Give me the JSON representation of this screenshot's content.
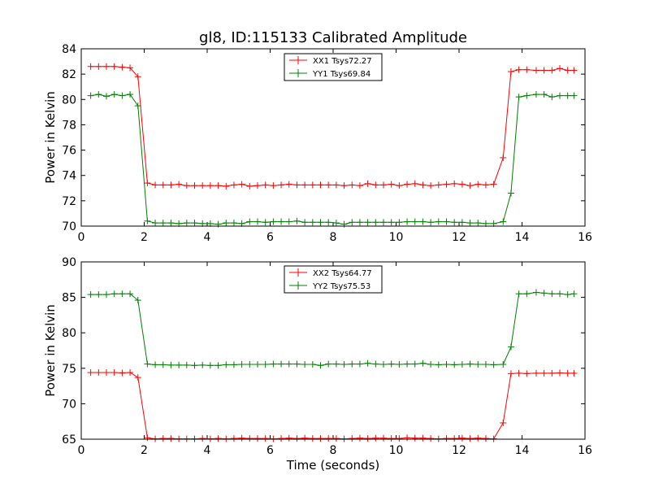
{
  "chart_data": [
    {
      "type": "line",
      "title": "gl8, ID:115133 Calibrated Amplitude",
      "xlabel": "",
      "ylabel": "Power in Kelvin",
      "xlim": [
        0,
        16
      ],
      "ylim": [
        70,
        84
      ],
      "xticks": [
        0,
        2,
        4,
        6,
        8,
        10,
        12,
        14,
        16
      ],
      "yticks": [
        70,
        72,
        74,
        76,
        78,
        80,
        82,
        84
      ],
      "grid": false,
      "legend_position": "top-center",
      "x": [
        0.3,
        0.55,
        0.8,
        1.05,
        1.3,
        1.55,
        1.8,
        2.1,
        2.35,
        2.6,
        2.85,
        3.1,
        3.35,
        3.6,
        3.85,
        4.1,
        4.35,
        4.6,
        4.85,
        5.1,
        5.35,
        5.6,
        5.85,
        6.1,
        6.35,
        6.6,
        6.85,
        7.1,
        7.35,
        7.6,
        7.85,
        8.1,
        8.35,
        8.6,
        8.85,
        9.1,
        9.35,
        9.6,
        9.85,
        10.1,
        10.35,
        10.6,
        10.85,
        11.1,
        11.35,
        11.6,
        11.85,
        12.1,
        12.35,
        12.6,
        12.85,
        13.1,
        13.4,
        13.65,
        13.9,
        14.15,
        14.45,
        14.7,
        14.95,
        15.2,
        15.45,
        15.65
      ],
      "series": [
        {
          "name": "XX1 Tsys72.27",
          "color": "#ff0000",
          "values": [
            82.6,
            82.6,
            82.6,
            82.6,
            82.55,
            82.5,
            81.8,
            73.4,
            73.25,
            73.25,
            73.25,
            73.3,
            73.2,
            73.2,
            73.2,
            73.2,
            73.2,
            73.15,
            73.25,
            73.3,
            73.15,
            73.2,
            73.25,
            73.2,
            73.25,
            73.3,
            73.25,
            73.25,
            73.25,
            73.25,
            73.25,
            73.25,
            73.2,
            73.25,
            73.2,
            73.35,
            73.25,
            73.25,
            73.3,
            73.2,
            73.3,
            73.35,
            73.25,
            73.2,
            73.25,
            73.3,
            73.35,
            73.3,
            73.2,
            73.3,
            73.25,
            73.3,
            75.4,
            82.2,
            82.35,
            82.35,
            82.3,
            82.3,
            82.3,
            82.45,
            82.3,
            82.3
          ]
        },
        {
          "name": "YY1 Tsys69.84",
          "color": "#008000",
          "values": [
            80.3,
            80.4,
            80.25,
            80.4,
            80.3,
            80.4,
            79.5,
            70.4,
            70.25,
            70.25,
            70.25,
            70.2,
            70.25,
            70.25,
            70.2,
            70.2,
            70.15,
            70.25,
            70.25,
            70.2,
            70.35,
            70.35,
            70.3,
            70.35,
            70.35,
            70.35,
            70.4,
            70.3,
            70.3,
            70.3,
            70.3,
            70.25,
            70.15,
            70.3,
            70.3,
            70.3,
            70.3,
            70.3,
            70.3,
            70.3,
            70.35,
            70.35,
            70.35,
            70.3,
            70.35,
            70.35,
            70.3,
            70.3,
            70.25,
            70.25,
            70.2,
            70.2,
            70.35,
            72.6,
            80.2,
            80.3,
            80.4,
            80.4,
            80.2,
            80.3,
            80.3,
            80.3
          ]
        }
      ]
    },
    {
      "type": "line",
      "title": "",
      "xlabel": "Time (seconds)",
      "ylabel": "Power in Kelvin",
      "xlim": [
        0,
        16
      ],
      "ylim": [
        65,
        90
      ],
      "xticks": [
        0,
        2,
        4,
        6,
        8,
        10,
        12,
        14,
        16
      ],
      "yticks": [
        65,
        70,
        75,
        80,
        85,
        90
      ],
      "grid": false,
      "legend_position": "top-center",
      "x": [
        0.3,
        0.55,
        0.8,
        1.05,
        1.3,
        1.55,
        1.8,
        2.1,
        2.35,
        2.6,
        2.85,
        3.1,
        3.35,
        3.6,
        3.85,
        4.1,
        4.35,
        4.6,
        4.85,
        5.1,
        5.35,
        5.6,
        5.85,
        6.1,
        6.35,
        6.6,
        6.85,
        7.1,
        7.35,
        7.6,
        7.85,
        8.1,
        8.35,
        8.6,
        8.85,
        9.1,
        9.35,
        9.6,
        9.85,
        10.1,
        10.35,
        10.6,
        10.85,
        11.1,
        11.35,
        11.6,
        11.85,
        12.1,
        12.35,
        12.6,
        12.85,
        13.1,
        13.4,
        13.65,
        13.9,
        14.15,
        14.45,
        14.7,
        14.95,
        15.2,
        15.45,
        15.65
      ],
      "series": [
        {
          "name": "XX2 Tsys64.77",
          "color": "#ff0000",
          "values": [
            74.4,
            74.4,
            74.4,
            74.4,
            74.35,
            74.4,
            73.7,
            65.2,
            65.05,
            65.1,
            65.1,
            65.05,
            65.05,
            65.05,
            65.1,
            65.05,
            65.1,
            65.05,
            65.1,
            65.15,
            65.1,
            65.1,
            65.1,
            65.05,
            65.1,
            65.15,
            65.1,
            65.15,
            65.1,
            65.1,
            65.1,
            65.1,
            65.05,
            65.1,
            65.15,
            65.1,
            65.15,
            65.15,
            65.1,
            65.1,
            65.2,
            65.15,
            65.15,
            65.1,
            65.05,
            65.1,
            65.1,
            65.15,
            65.1,
            65.15,
            65.1,
            65.05,
            67.3,
            74.25,
            74.3,
            74.25,
            74.3,
            74.3,
            74.3,
            74.35,
            74.3,
            74.3
          ]
        },
        {
          "name": "YY2 Tsys75.53",
          "color": "#008000",
          "values": [
            85.4,
            85.4,
            85.4,
            85.5,
            85.5,
            85.5,
            84.6,
            75.6,
            75.5,
            75.5,
            75.45,
            75.45,
            75.45,
            75.4,
            75.45,
            75.4,
            75.4,
            75.5,
            75.5,
            75.55,
            75.55,
            75.55,
            75.55,
            75.6,
            75.6,
            75.6,
            75.6,
            75.55,
            75.55,
            75.4,
            75.6,
            75.6,
            75.55,
            75.6,
            75.6,
            75.7,
            75.6,
            75.55,
            75.6,
            75.55,
            75.6,
            75.6,
            75.7,
            75.55,
            75.5,
            75.55,
            75.5,
            75.55,
            75.6,
            75.55,
            75.55,
            75.5,
            75.55,
            78.0,
            85.5,
            85.5,
            85.7,
            85.6,
            85.5,
            85.5,
            85.4,
            85.5
          ]
        }
      ]
    }
  ]
}
